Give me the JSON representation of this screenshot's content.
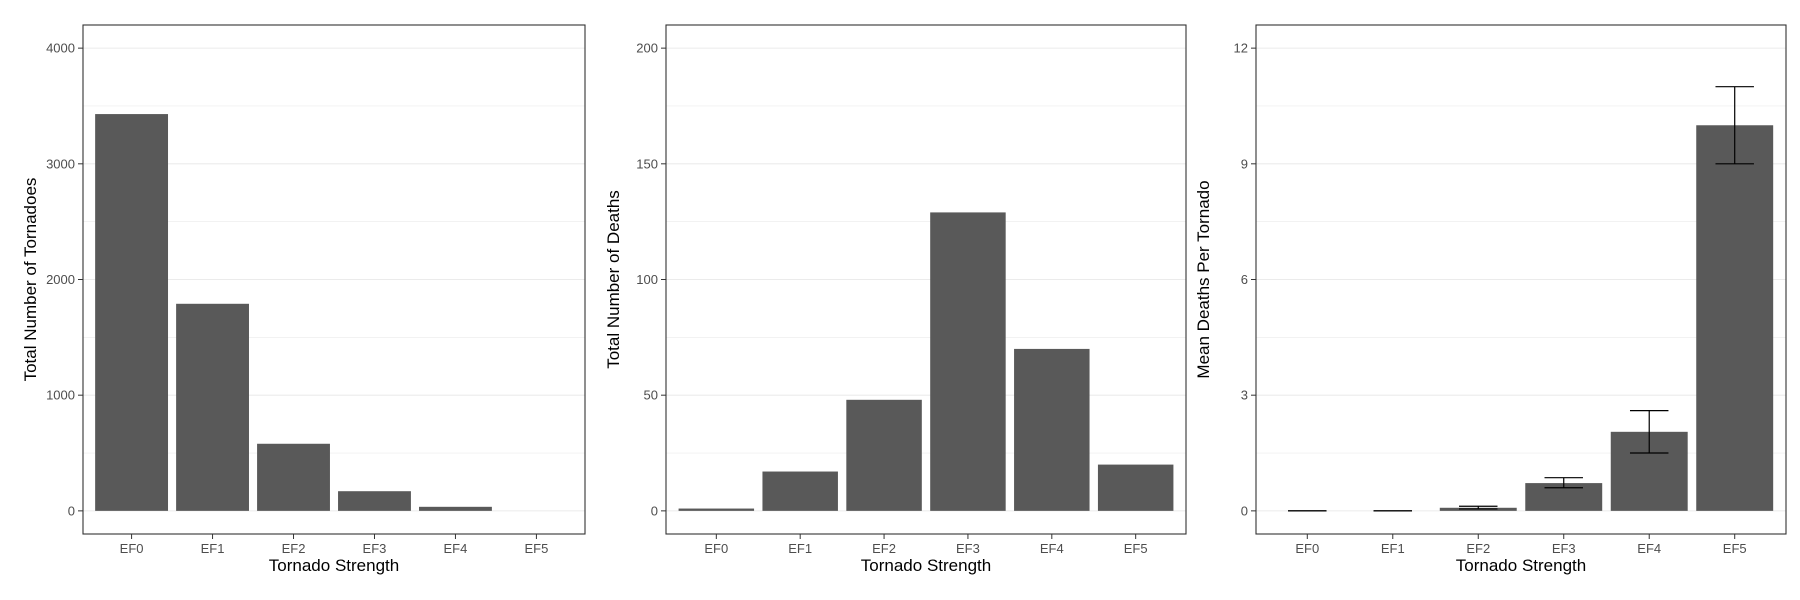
{
  "colors": {
    "bar": "#595959",
    "grid": "#ebebeb",
    "panel_border": "#333333",
    "tick": "#4d4d4d",
    "error_bar": "#000000"
  },
  "chart_data": [
    {
      "type": "bar",
      "categories": [
        "EF0",
        "EF1",
        "EF2",
        "EF3",
        "EF4",
        "EF5"
      ],
      "values": [
        3430,
        1790,
        580,
        170,
        35,
        0
      ],
      "xlabel": "Tornado Strength",
      "ylabel": "Total Number of Tornadoes",
      "ylim": [
        -200,
        4200
      ],
      "yticks": [
        0,
        1000,
        2000,
        3000,
        4000
      ],
      "grid": true
    },
    {
      "type": "bar",
      "categories": [
        "EF0",
        "EF1",
        "EF2",
        "EF3",
        "EF4",
        "EF5"
      ],
      "values": [
        1,
        17,
        48,
        129,
        70,
        20
      ],
      "xlabel": "Tornado Strength",
      "ylabel": "Total Number of Deaths",
      "ylim": [
        -10,
        210
      ],
      "yticks": [
        0,
        50,
        100,
        150,
        200
      ],
      "grid": true
    },
    {
      "type": "bar",
      "categories": [
        "EF0",
        "EF1",
        "EF2",
        "EF3",
        "EF4",
        "EF5"
      ],
      "values": [
        0,
        0,
        0.08,
        0.72,
        2.05,
        10
      ],
      "error_low": [
        0,
        0,
        0.05,
        0.6,
        1.5,
        9
      ],
      "error_high": [
        0,
        0,
        0.12,
        0.86,
        2.6,
        11
      ],
      "xlabel": "Tornado Strength",
      "ylabel": "Mean Deaths Per Tornado",
      "ylim": [
        -0.6,
        12.6
      ],
      "yticks": [
        0,
        3,
        6,
        9,
        12
      ],
      "grid": true
    }
  ]
}
